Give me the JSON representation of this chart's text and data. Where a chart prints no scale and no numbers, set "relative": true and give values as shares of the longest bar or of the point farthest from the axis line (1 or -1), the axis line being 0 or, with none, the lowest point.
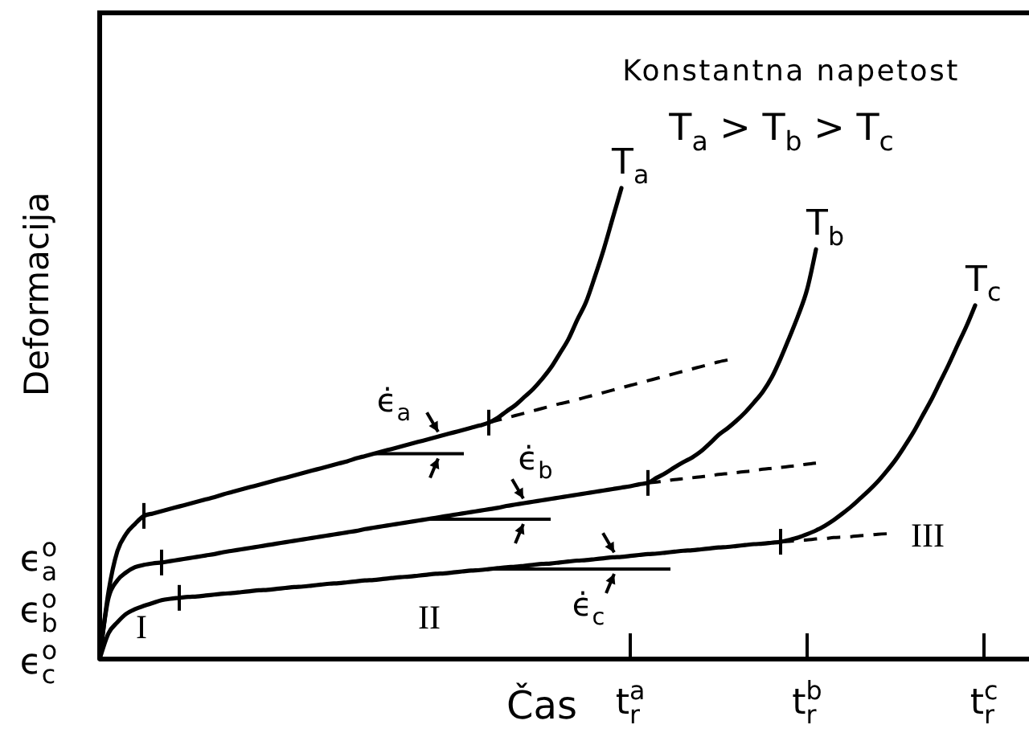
{
  "chart_data": {
    "type": "line",
    "relative": true,
    "title": "Konstantna napetost",
    "subtitle": "T$_{a}$ > T$_{b}$ > T$_{c}$",
    "xlabel": "Čas",
    "ylabel": "Deformacija",
    "categories": [
      null,
      null,
      null,
      null,
      null,
      null,
      null,
      null,
      null,
      null,
      null,
      null,
      null,
      null,
      null,
      null,
      null,
      null,
      null,
      null,
      null,
      null,
      null,
      null,
      null,
      null,
      null,
      null,
      null,
      null,
      null,
      null,
      null,
      null,
      null,
      null,
      null,
      null,
      null,
      null,
      null,
      null,
      null,
      null,
      null,
      null,
      null,
      null,
      null,
      null,
      null,
      null,
      null,
      null,
      null,
      null,
      null,
      null,
      null,
      null,
      "t$_{r}$$^{a}$",
      null,
      null,
      null,
      null,
      null,
      null,
      null,
      null,
      null,
      null,
      null,
      null,
      null,
      null,
      null,
      null,
      null,
      null,
      null,
      "t$_{r}$$^{b}$",
      null,
      null,
      null,
      null,
      null,
      null,
      null,
      null,
      null,
      null,
      null,
      null,
      null,
      null,
      null,
      null,
      null,
      null,
      null,
      "t$_{r}$$^{c}$",
      null,
      null,
      null,
      null
    ],
    "series": [
      {
        "name": "T$_{a}$",
        "color": "#000000",
        "values": [
          0,
          0.143,
          0.229,
          0.266,
          0.287,
          0.304,
          0.309,
          0.314,
          0.319,
          0.324,
          0.329,
          0.334,
          0.339,
          0.344,
          0.35,
          0.355,
          0.36,
          0.365,
          0.37,
          0.375,
          0.38,
          0.385,
          0.39,
          0.395,
          0.4,
          0.405,
          0.41,
          0.415,
          0.42,
          0.426,
          0.431,
          0.436,
          0.441,
          0.446,
          0.451,
          0.456,
          0.461,
          0.466,
          0.471,
          0.476,
          0.481,
          0.486,
          0.491,
          0.496,
          0.502,
          0.512,
          0.526,
          0.539,
          0.556,
          0.573,
          0.594,
          0.618,
          0.648,
          0.679,
          0.72,
          0.758,
          0.812,
          0.87,
          0.935,
          1,
          null,
          null,
          null,
          null,
          null,
          null,
          null,
          null,
          null,
          null,
          null,
          null,
          null,
          null,
          null,
          null,
          null,
          null,
          null,
          null,
          null,
          null,
          null,
          null,
          null,
          null,
          null,
          null,
          null,
          null,
          null,
          null,
          null,
          null,
          null,
          null,
          null,
          null,
          null,
          null,
          null,
          null,
          null,
          null,
          null
        ]
      },
      {
        "color": "#000000",
        "line_style": "dashed",
        "values": [
          null,
          null,
          null,
          null,
          null,
          null,
          null,
          null,
          null,
          null,
          null,
          null,
          null,
          null,
          null,
          null,
          null,
          null,
          null,
          null,
          null,
          null,
          null,
          null,
          null,
          null,
          null,
          null,
          null,
          null,
          null,
          null,
          null,
          null,
          null,
          null,
          null,
          null,
          null,
          null,
          null,
          null,
          null,
          null,
          0.502,
          0.507,
          0.512,
          0.517,
          0.522,
          0.527,
          0.532,
          0.537,
          0.542,
          0.546,
          0.551,
          0.556,
          0.561,
          0.566,
          0.571,
          0.576,
          0.581,
          0.586,
          0.591,
          0.596,
          0.601,
          0.606,
          0.611,
          0.616,
          0.621,
          0.626,
          0.631,
          0.635,
          null,
          null,
          null,
          null,
          null,
          null,
          null,
          null,
          null,
          null,
          null,
          null,
          null,
          null,
          null,
          null,
          null,
          null,
          null,
          null,
          null,
          null,
          null,
          null,
          null,
          null,
          null,
          null,
          null,
          null,
          null,
          null,
          null
        ]
      },
      {
        "name": "T$_{b}$",
        "color": "#000000",
        "values": [
          0,
          0.13,
          0.167,
          0.184,
          0.195,
          0.2,
          0.203,
          0.205,
          0.208,
          0.211,
          0.214,
          0.217,
          0.22,
          0.223,
          0.227,
          0.23,
          0.233,
          0.236,
          0.239,
          0.242,
          0.245,
          0.248,
          0.251,
          0.254,
          0.257,
          0.26,
          0.263,
          0.266,
          0.269,
          0.272,
          0.276,
          0.279,
          0.282,
          0.285,
          0.288,
          0.291,
          0.294,
          0.297,
          0.3,
          0.303,
          0.306,
          0.309,
          0.312,
          0.315,
          0.318,
          0.321,
          0.325,
          0.328,
          0.331,
          0.334,
          0.337,
          0.34,
          0.343,
          0.346,
          0.349,
          0.352,
          0.355,
          0.358,
          0.361,
          0.364,
          0.367,
          0.371,
          0.374,
          0.385,
          0.395,
          0.407,
          0.418,
          0.428,
          0.441,
          0.458,
          0.476,
          0.49,
          0.506,
          0.524,
          0.545,
          0.568,
          0.598,
          0.638,
          0.683,
          0.73,
          0.785,
          0.87,
          null,
          null,
          null,
          null,
          null,
          null,
          null,
          null,
          null,
          null,
          null,
          null,
          null,
          null,
          null,
          null,
          null,
          null,
          null,
          null,
          null,
          null,
          null
        ]
      },
      {
        "color": "#000000",
        "line_style": "dashed",
        "values": [
          null,
          null,
          null,
          null,
          null,
          null,
          null,
          null,
          null,
          null,
          null,
          null,
          null,
          null,
          null,
          null,
          null,
          null,
          null,
          null,
          null,
          null,
          null,
          null,
          null,
          null,
          null,
          null,
          null,
          null,
          null,
          null,
          null,
          null,
          null,
          null,
          null,
          null,
          null,
          null,
          null,
          null,
          null,
          null,
          null,
          null,
          null,
          null,
          null,
          null,
          null,
          null,
          null,
          null,
          null,
          null,
          null,
          null,
          null,
          null,
          null,
          null,
          0.374,
          0.376,
          0.378,
          0.381,
          0.383,
          0.385,
          0.387,
          0.389,
          0.392,
          0.394,
          0.396,
          0.398,
          0.4,
          0.403,
          0.405,
          0.407,
          0.409,
          0.411,
          0.414,
          0.416,
          null,
          null,
          null,
          null,
          null,
          null,
          null,
          null,
          null,
          null,
          null,
          null,
          null,
          null,
          null,
          null,
          null,
          null,
          null,
          null,
          null,
          null,
          null
        ]
      },
      {
        "name": "T$_{c}$",
        "color": "#000000",
        "values": [
          0,
          0.055,
          0.078,
          0.096,
          0.106,
          0.113,
          0.119,
          0.125,
          0.128,
          0.13,
          0.132,
          0.133,
          0.135,
          0.137,
          0.139,
          0.14,
          0.142,
          0.144,
          0.146,
          0.147,
          0.149,
          0.151,
          0.153,
          0.154,
          0.156,
          0.158,
          0.16,
          0.161,
          0.163,
          0.165,
          0.167,
          0.168,
          0.17,
          0.172,
          0.174,
          0.175,
          0.177,
          0.179,
          0.181,
          0.182,
          0.184,
          0.186,
          0.188,
          0.189,
          0.191,
          0.193,
          0.195,
          0.196,
          0.198,
          0.2,
          0.202,
          0.203,
          0.205,
          0.207,
          0.209,
          0.21,
          0.212,
          0.214,
          0.216,
          0.217,
          0.219,
          0.221,
          0.223,
          0.224,
          0.226,
          0.228,
          0.23,
          0.231,
          0.233,
          0.235,
          0.237,
          0.238,
          0.24,
          0.242,
          0.244,
          0.245,
          0.247,
          0.249,
          0.253,
          0.258,
          0.265,
          0.273,
          0.283,
          0.295,
          0.309,
          0.324,
          0.341,
          0.358,
          0.377,
          0.399,
          0.423,
          0.451,
          0.481,
          0.515,
          0.549,
          0.587,
          0.625,
          0.666,
          0.706,
          0.751,
          null,
          null,
          null,
          null,
          null
        ]
      },
      {
        "color": "#000000",
        "line_style": "dashed",
        "values": [
          null,
          null,
          null,
          null,
          null,
          null,
          null,
          null,
          null,
          null,
          null,
          null,
          null,
          null,
          null,
          null,
          null,
          null,
          null,
          null,
          null,
          null,
          null,
          null,
          null,
          null,
          null,
          null,
          null,
          null,
          null,
          null,
          null,
          null,
          null,
          null,
          null,
          null,
          null,
          null,
          null,
          null,
          null,
          null,
          null,
          null,
          null,
          null,
          null,
          null,
          null,
          null,
          null,
          null,
          null,
          null,
          null,
          null,
          null,
          null,
          null,
          null,
          null,
          null,
          null,
          null,
          null,
          null,
          null,
          null,
          null,
          null,
          null,
          null,
          null,
          null,
          null,
          0.249,
          0.25,
          0.252,
          0.253,
          0.255,
          0.256,
          0.258,
          0.259,
          0.26,
          0.262,
          0.263,
          0.265,
          0.266,
          null,
          null,
          null,
          null,
          null,
          null,
          null,
          null,
          null,
          null,
          null,
          null,
          null,
          null,
          null
        ]
      }
    ],
    "annotations": [
      "ϵ̇$_{a}$",
      "ϵ̇$_{b}$",
      "ϵ̇$_{c}$",
      "ϵ$^{o}$$_{a}$",
      "ϵ$^{o}$$_{b}$",
      "ϵ$^{o}$$_{c}$",
      "I",
      "II",
      "III"
    ]
  }
}
